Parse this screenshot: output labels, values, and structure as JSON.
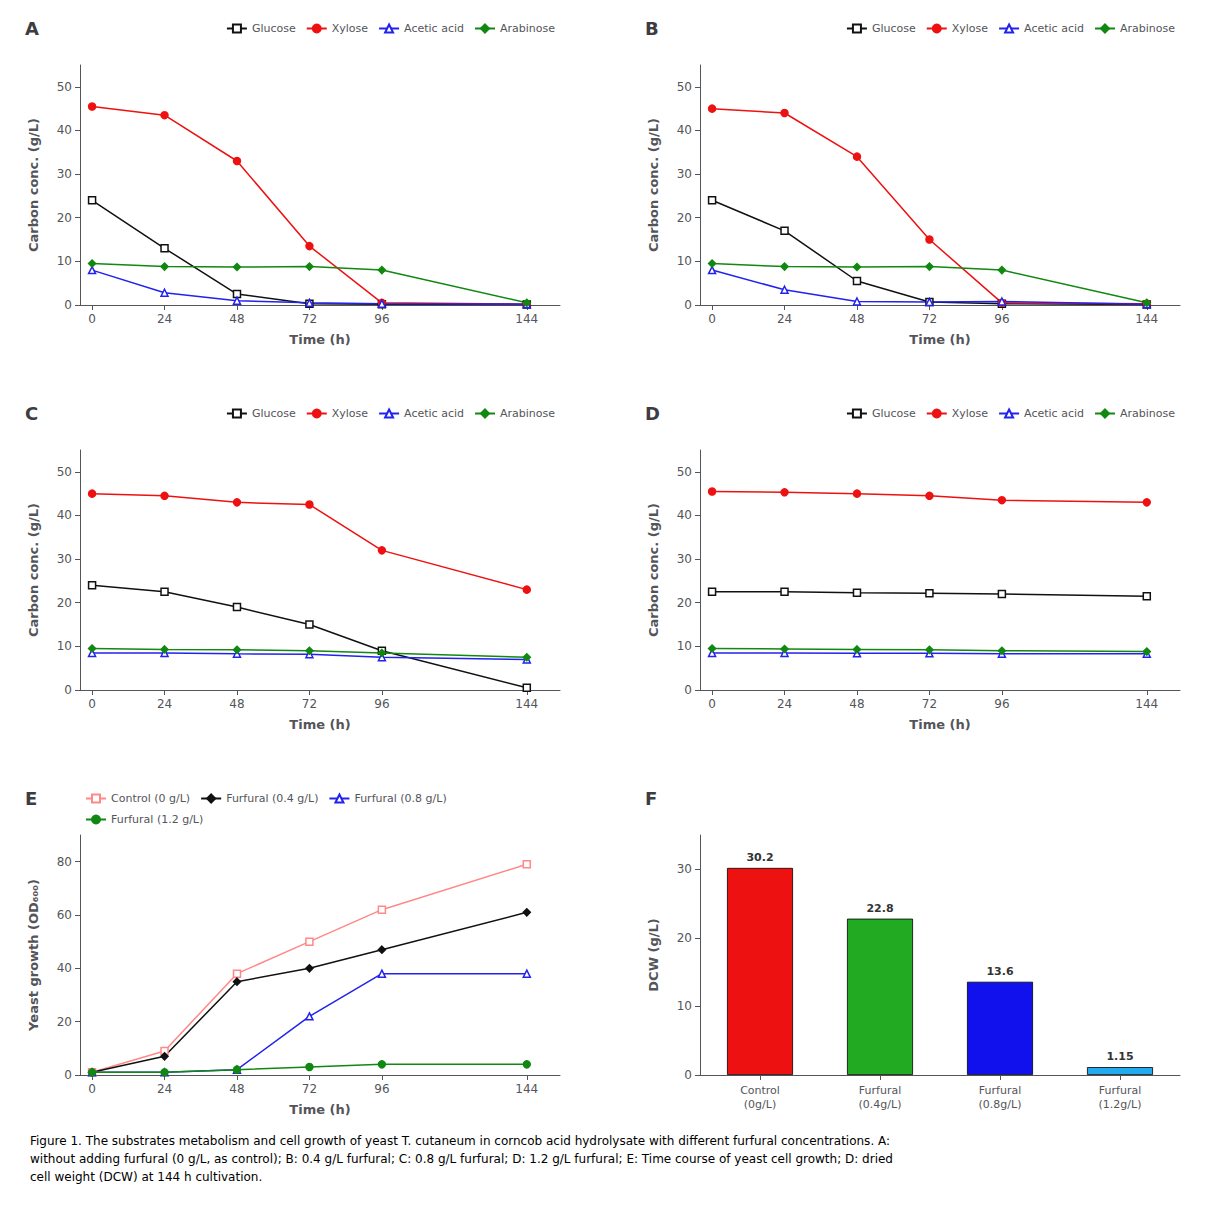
{
  "chart_data": [
    {
      "type": "line",
      "title": "A",
      "xlabel": "Time (h)",
      "ylabel": "Carbon conc. (g/L)",
      "x": [
        0,
        24,
        48,
        72,
        96,
        144
      ],
      "series": [
        {
          "name": "Glucose",
          "color": "#111111",
          "marker": "open_square",
          "values": [
            24,
            13,
            2.5,
            0.3,
            0.2,
            0.1
          ]
        },
        {
          "name": "Xylose",
          "color": "#ee1111",
          "marker": "circle",
          "values": [
            45.5,
            43.5,
            33,
            13.5,
            0.5,
            0.2
          ]
        },
        {
          "name": "Acetic acid",
          "color": "#2222ee",
          "marker": "open_triangle",
          "values": [
            8,
            2.8,
            1.0,
            0.5,
            0.3,
            0.2
          ]
        },
        {
          "name": "Arabinose",
          "color": "#118811",
          "marker": "diamond",
          "values": [
            9.5,
            8.8,
            8.7,
            8.8,
            8.0,
            0.5
          ]
        }
      ],
      "xlim": [
        -4,
        155
      ],
      "xticks": [
        0,
        24,
        48,
        72,
        96,
        144
      ],
      "ylim": [
        0,
        55
      ],
      "yticks": [
        0,
        10,
        20,
        30,
        40,
        50
      ],
      "grid": false,
      "legend": "upper right"
    },
    {
      "type": "line",
      "title": "B",
      "xlabel": "Time (h)",
      "ylabel": "Carbon conc. (g/L)",
      "x": [
        0,
        24,
        48,
        72,
        96,
        144
      ],
      "series": [
        {
          "name": "Glucose",
          "color": "#111111",
          "marker": "open_square",
          "values": [
            24,
            17,
            5.5,
            0.7,
            0.3,
            0.1
          ]
        },
        {
          "name": "Xylose",
          "color": "#ee1111",
          "marker": "circle",
          "values": [
            45,
            44,
            34,
            15,
            0.5,
            0.3
          ]
        },
        {
          "name": "Acetic acid",
          "color": "#2222ee",
          "marker": "open_triangle",
          "values": [
            8,
            3.5,
            0.8,
            0.7,
            0.8,
            0.2
          ]
        },
        {
          "name": "Arabinose",
          "color": "#118811",
          "marker": "diamond",
          "values": [
            9.5,
            8.8,
            8.7,
            8.8,
            8.0,
            0.5
          ]
        }
      ],
      "xlim": [
        -4,
        155
      ],
      "xticks": [
        0,
        24,
        48,
        72,
        96,
        144
      ],
      "ylim": [
        0,
        55
      ],
      "yticks": [
        0,
        10,
        20,
        30,
        40,
        50
      ],
      "grid": false,
      "legend": "upper right"
    },
    {
      "type": "line",
      "title": "C",
      "xlabel": "Time (h)",
      "ylabel": "Carbon conc. (g/L)",
      "x": [
        0,
        24,
        48,
        72,
        96,
        144
      ],
      "series": [
        {
          "name": "Glucose",
          "color": "#111111",
          "marker": "open_square",
          "values": [
            24,
            22.5,
            19,
            15,
            9,
            0.5
          ]
        },
        {
          "name": "Xylose",
          "color": "#ee1111",
          "marker": "circle",
          "values": [
            45,
            44.5,
            43,
            42.5,
            32,
            23
          ]
        },
        {
          "name": "Acetic acid",
          "color": "#2222ee",
          "marker": "open_triangle",
          "values": [
            8.5,
            8.5,
            8.3,
            8.2,
            7.5,
            7.0
          ]
        },
        {
          "name": "Arabinose",
          "color": "#118811",
          "marker": "diamond",
          "values": [
            9.5,
            9.3,
            9.2,
            9.0,
            8.5,
            7.5
          ]
        }
      ],
      "xlim": [
        -4,
        155
      ],
      "xticks": [
        0,
        24,
        48,
        72,
        96,
        144
      ],
      "ylim": [
        0,
        55
      ],
      "yticks": [
        0,
        10,
        20,
        30,
        40,
        50
      ],
      "grid": false,
      "legend": "upper right"
    },
    {
      "type": "line",
      "title": "D",
      "xlabel": "Time (h)",
      "ylabel": "Carbon conc. (g/L)",
      "x": [
        0,
        24,
        48,
        72,
        96,
        144
      ],
      "series": [
        {
          "name": "Glucose",
          "color": "#111111",
          "marker": "open_square",
          "values": [
            22.5,
            22.5,
            22.3,
            22.2,
            22.0,
            21.5
          ]
        },
        {
          "name": "Xylose",
          "color": "#ee1111",
          "marker": "circle",
          "values": [
            45.5,
            45.3,
            45.0,
            44.5,
            43.5,
            43.0
          ]
        },
        {
          "name": "Acetic acid",
          "color": "#2222ee",
          "marker": "open_triangle",
          "values": [
            8.5,
            8.5,
            8.4,
            8.4,
            8.3,
            8.3
          ]
        },
        {
          "name": "Arabinose",
          "color": "#118811",
          "marker": "diamond",
          "values": [
            9.5,
            9.4,
            9.3,
            9.2,
            9.0,
            8.8
          ]
        }
      ],
      "xlim": [
        -4,
        155
      ],
      "xticks": [
        0,
        24,
        48,
        72,
        96,
        144
      ],
      "ylim": [
        0,
        55
      ],
      "yticks": [
        0,
        10,
        20,
        30,
        40,
        50
      ],
      "grid": false,
      "legend": "upper right"
    },
    {
      "type": "line",
      "title": "E",
      "xlabel": "Time (h)",
      "ylabel": "Yeast growth (OD₆₀₀)",
      "x": [
        0,
        24,
        48,
        72,
        96,
        144
      ],
      "series": [
        {
          "name": "Control (0 g/L)",
          "color": "#ff8888",
          "marker": "open_square",
          "values": [
            1,
            9,
            38,
            50,
            62,
            79
          ]
        },
        {
          "name": "Furfural (0.4 g/L)",
          "color": "#111111",
          "marker": "diamond",
          "values": [
            1,
            7,
            35,
            40,
            47,
            61
          ]
        },
        {
          "name": "Furfural (0.8 g/L)",
          "color": "#2222ee",
          "marker": "open_triangle",
          "values": [
            1,
            1,
            2,
            22,
            38,
            38
          ]
        },
        {
          "name": "Furfural (1.2 g/L)",
          "color": "#118811",
          "marker": "circle",
          "values": [
            1,
            1,
            2,
            3,
            4,
            4
          ]
        }
      ],
      "xlim": [
        -4,
        155
      ],
      "xticks": [
        0,
        24,
        48,
        72,
        96,
        144
      ],
      "ylim": [
        0,
        90
      ],
      "yticks": [
        0,
        20,
        40,
        60,
        80
      ],
      "grid": false,
      "legend": "upper left"
    },
    {
      "type": "bar",
      "title": "F",
      "ylabel": "DCW (g/L)",
      "categories": [
        "Control\n(0g/L)",
        "Furfural\n(0.4g/L)",
        "Furfural\n(0.8g/L)",
        "Furfural\n(1.2g/L)"
      ],
      "values": [
        30.2,
        22.8,
        13.6,
        1.15
      ],
      "colors": [
        "#ee1111",
        "#22aa22",
        "#1111ee",
        "#22aaee"
      ],
      "ylim": [
        0,
        35
      ],
      "yticks": [
        0,
        10,
        20,
        30
      ],
      "grid": false,
      "data_labels": true
    }
  ],
  "caption": "Figure 1. The substrates metabolism and cell growth of yeast T. cutaneum in corncob acid hydrolysate with different furfural concentrations. A:\nwithout adding furfural (0 g/L, as control); B: 0.4 g/L furfural; C: 0.8 g/L furfural; D: 1.2 g/L furfural; E: Time course of yeast cell growth; D: dried\ncell weight (DCW) at 144 h cultivation."
}
